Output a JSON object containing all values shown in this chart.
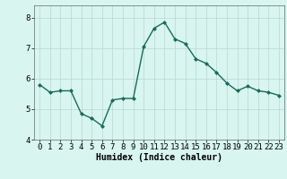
{
  "x": [
    0,
    1,
    2,
    3,
    4,
    5,
    6,
    7,
    8,
    9,
    10,
    11,
    12,
    13,
    14,
    15,
    16,
    17,
    18,
    19,
    20,
    21,
    22,
    23
  ],
  "y": [
    5.8,
    5.55,
    5.6,
    5.6,
    4.85,
    4.7,
    4.45,
    5.3,
    5.35,
    5.35,
    7.05,
    7.65,
    7.85,
    7.3,
    7.15,
    6.65,
    6.5,
    6.2,
    5.85,
    5.6,
    5.75,
    5.6,
    5.55,
    5.45
  ],
  "line_color": "#1a6b5a",
  "marker": "D",
  "marker_size": 2.0,
  "bg_color": "#d8f5f0",
  "grid_color": "#b8d8d0",
  "xlabel": "Humidex (Indice chaleur)",
  "ylim": [
    4.0,
    8.4
  ],
  "xlim": [
    -0.5,
    23.5
  ],
  "yticks": [
    4,
    5,
    6,
    7,
    8
  ],
  "xticks": [
    0,
    1,
    2,
    3,
    4,
    5,
    6,
    7,
    8,
    9,
    10,
    11,
    12,
    13,
    14,
    15,
    16,
    17,
    18,
    19,
    20,
    21,
    22,
    23
  ],
  "xlabel_fontsize": 7,
  "tick_fontsize": 6.5,
  "line_width": 1.0
}
